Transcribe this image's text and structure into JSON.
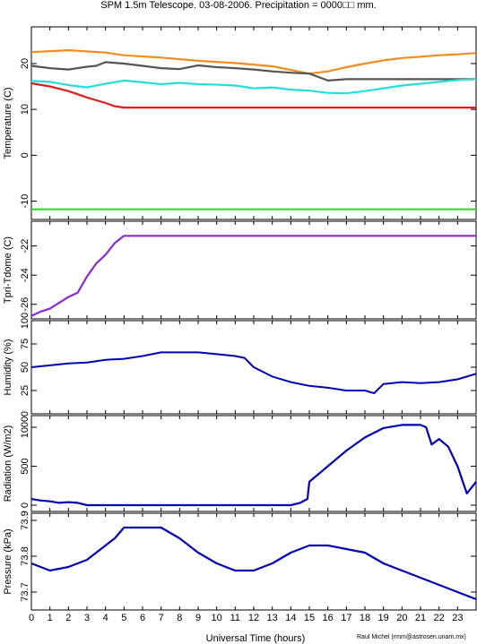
{
  "title": "SPM 1.5m Telescope. 03-08-2006. Precipitation = 0000□□ mm.",
  "xlabel": "Universal Time (hours)",
  "credit": "Raul Michel (rmm@astrosen.unam.mx)",
  "xticks": [
    "0",
    "1",
    "2",
    "3",
    "4",
    "5",
    "6",
    "7",
    "8",
    "9",
    "10",
    "11",
    "12",
    "13",
    "14",
    "15",
    "16",
    "17",
    "18",
    "19",
    "20",
    "21",
    "22",
    "23"
  ],
  "chart_data": [
    {
      "type": "scatter",
      "ylabel": "Temperature (C)",
      "ylim": [
        -14,
        28
      ],
      "xlim": [
        0,
        24
      ],
      "ytick_labels": [
        "-10",
        "0",
        "10",
        "20"
      ],
      "series": [
        {
          "color": "#f08c1e",
          "x": [
            0,
            2,
            4,
            5,
            7,
            9,
            11,
            13,
            15,
            16,
            17,
            18,
            19,
            20,
            21,
            22,
            23,
            24
          ],
          "y": [
            22.5,
            22.9,
            22.4,
            21.8,
            21.3,
            20.6,
            20.1,
            19.4,
            17.8,
            18.3,
            19.2,
            20,
            20.7,
            21.2,
            21.5,
            21.8,
            22.0,
            22.3
          ]
        },
        {
          "color": "#555555",
          "x": [
            0,
            1,
            2,
            3,
            3.5,
            4,
            5,
            6,
            7,
            8,
            9,
            10,
            11,
            12,
            13,
            14,
            15,
            16,
            17,
            18,
            19,
            20,
            21,
            22,
            23,
            24
          ],
          "y": [
            19.5,
            19,
            18.7,
            19.3,
            19.5,
            20.3,
            20,
            19.5,
            19,
            18.8,
            19.6,
            19.2,
            19,
            18.7,
            18.3,
            18,
            17.8,
            16.3,
            16.6,
            16.6,
            16.6,
            16.6,
            16.6,
            16.6,
            16.6,
            16.6
          ]
        },
        {
          "color": "#28dcdc",
          "x": [
            0,
            1,
            2,
            3,
            4,
            5,
            6,
            7,
            8,
            9,
            10,
            11,
            12,
            13,
            14,
            15,
            16,
            17,
            18,
            19,
            20,
            21,
            22,
            23,
            24
          ],
          "y": [
            16.2,
            16,
            15.3,
            14.8,
            15.6,
            16.3,
            15.9,
            15.5,
            15.8,
            15.5,
            15.4,
            15.2,
            14.6,
            14.8,
            14.3,
            14.1,
            13.6,
            13.5,
            14,
            14.6,
            15.2,
            15.6,
            16,
            16.4,
            16.6
          ]
        },
        {
          "color": "#dc1e1e",
          "x": [
            0,
            1,
            2,
            3,
            4,
            4.5,
            5,
            6,
            8,
            10,
            12,
            14,
            16,
            18,
            20,
            22,
            24
          ],
          "y": [
            15.7,
            15,
            14,
            12.6,
            11.4,
            10.7,
            10.4,
            10.4,
            10.4,
            10.4,
            10.4,
            10.4,
            10.4,
            10.4,
            10.4,
            10.4,
            10.4
          ]
        },
        {
          "color": "#28dc28",
          "x": [
            0,
            24
          ],
          "y": [
            -11.8,
            -11.8
          ]
        }
      ]
    },
    {
      "type": "scatter",
      "ylabel": "Tpri-Tdome (C)",
      "ylim": [
        -27,
        -20.3
      ],
      "xlim": [
        0,
        24
      ],
      "ytick_labels": [
        "-26",
        "-24",
        "-22"
      ],
      "series": [
        {
          "color": "#8c28d2",
          "x": [
            0,
            0.5,
            1,
            1.5,
            2,
            2.5,
            3,
            3.5,
            4,
            4.5,
            5,
            5.5,
            8,
            12,
            16,
            20,
            24
          ],
          "y": [
            -26.8,
            -26.5,
            -26.3,
            -25.9,
            -25.5,
            -25.2,
            -24.1,
            -23.2,
            -22.6,
            -21.8,
            -21.3,
            -21.3,
            -21.3,
            -21.3,
            -21.3,
            -21.3,
            -21.3
          ]
        }
      ]
    },
    {
      "type": "line",
      "ylabel": "Humidity (%)",
      "ylim": [
        0,
        100
      ],
      "xlim": [
        0,
        24
      ],
      "ytick_labels": [
        "0",
        "25",
        "50",
        "75",
        "100"
      ],
      "series": [
        {
          "color": "#0000b4",
          "x": [
            0,
            1,
            2,
            3,
            4,
            5,
            6,
            7,
            8,
            9,
            10,
            11,
            11.5,
            12,
            13,
            14,
            15,
            16,
            17,
            18,
            18.5,
            19,
            20,
            21,
            22,
            23,
            24
          ],
          "y": [
            50,
            52,
            54,
            55,
            58,
            59,
            62,
            66,
            66,
            66,
            64,
            62,
            60,
            50,
            40,
            34,
            30,
            28,
            25,
            25,
            22,
            32,
            34,
            33,
            34,
            37,
            43
          ]
        }
      ]
    },
    {
      "type": "scatter",
      "ylabel": "Radiation (W/m2)",
      "ylim": [
        -80,
        1150
      ],
      "xlim": [
        0,
        24
      ],
      "ytick_labels": [
        "0",
        "500",
        "1000"
      ],
      "series": [
        {
          "color": "#0000b4",
          "x": [
            0,
            0.5,
            1,
            1.5,
            2,
            2.5,
            3,
            4,
            5,
            6,
            8,
            10,
            12,
            13,
            14,
            14.5,
            14.9,
            15,
            16,
            17,
            18,
            19,
            20,
            21,
            21.3,
            21.6,
            22,
            22.5,
            23,
            23.5,
            24
          ],
          "y": [
            80,
            60,
            50,
            30,
            40,
            30,
            0,
            0,
            0,
            0,
            0,
            0,
            0,
            0,
            0,
            30,
            80,
            300,
            500,
            700,
            870,
            990,
            1030,
            1030,
            1000,
            780,
            850,
            750,
            500,
            150,
            300
          ]
        }
      ]
    },
    {
      "type": "scatter",
      "ylabel": "Pressure (kPa)",
      "ylim": [
        73.65,
        73.92
      ],
      "xlim": [
        0,
        24
      ],
      "ytick_labels": [
        "73.7",
        "73.8",
        "73.9"
      ],
      "series": [
        {
          "color": "#0000b4",
          "x": [
            0,
            1,
            2,
            3,
            3.5,
            4,
            4.5,
            5,
            6,
            7,
            8,
            9,
            10,
            11,
            12,
            12.5,
            13,
            14,
            15,
            16,
            17,
            18,
            19,
            20,
            21,
            22,
            23,
            24
          ],
          "y": [
            73.78,
            73.76,
            73.77,
            73.79,
            73.81,
            73.83,
            73.85,
            73.88,
            73.88,
            73.88,
            73.85,
            73.81,
            73.78,
            73.76,
            73.76,
            73.77,
            73.78,
            73.81,
            73.83,
            73.83,
            73.82,
            73.81,
            73.78,
            73.76,
            73.74,
            73.72,
            73.7,
            73.68
          ]
        }
      ]
    }
  ]
}
